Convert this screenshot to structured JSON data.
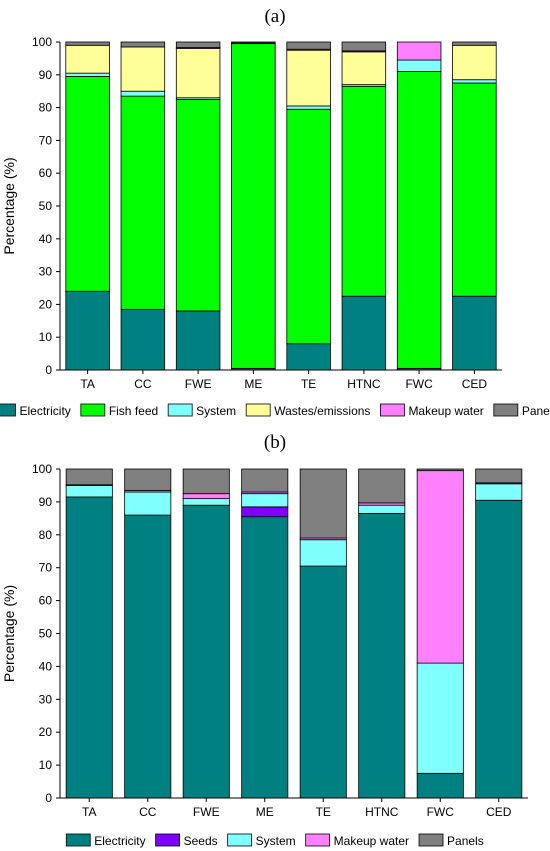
{
  "chart_data": [
    {
      "panel": "(a)",
      "type": "bar",
      "stacked": true,
      "categories": [
        "TA",
        "CC",
        "FWE",
        "ME",
        "TE",
        "HTNC",
        "FWC",
        "CED"
      ],
      "ylabel": "Percentage (%)",
      "ylim": [
        0,
        100
      ],
      "yticks": [
        0,
        10,
        20,
        30,
        40,
        50,
        60,
        70,
        80,
        90,
        100
      ],
      "series": [
        {
          "name": "Electricity",
          "color": "#008080",
          "values": [
            24,
            18.5,
            18,
            0.5,
            8,
            22.5,
            0.5,
            22.5
          ]
        },
        {
          "name": "Fish feed",
          "color": "#00ff00",
          "values": [
            65.5,
            65,
            64.5,
            99,
            71.5,
            64,
            90.5,
            65
          ]
        },
        {
          "name": "System",
          "color": "#80ffff",
          "values": [
            1,
            1.5,
            0.5,
            0,
            1,
            0.5,
            3.5,
            1
          ]
        },
        {
          "name": "Wastes/emissions",
          "color": "#ffff99",
          "values": [
            8.5,
            13.5,
            15,
            0.2,
            17,
            10,
            0,
            10.5
          ]
        },
        {
          "name": "Makeup water",
          "color": "#ff80ff",
          "values": [
            0,
            0,
            0.3,
            0,
            0.3,
            0.3,
            5.5,
            0
          ]
        },
        {
          "name": "Panels",
          "color": "#808080",
          "values": [
            1,
            1.5,
            1.7,
            0.3,
            2.2,
            2.7,
            0,
            1
          ]
        }
      ],
      "legend": "bottom"
    },
    {
      "panel": "(b)",
      "type": "bar",
      "stacked": true,
      "categories": [
        "TA",
        "CC",
        "FWE",
        "ME",
        "TE",
        "HTNC",
        "FWC",
        "CED"
      ],
      "ylabel": "Percentage (%)",
      "ylim": [
        0,
        100
      ],
      "yticks": [
        0,
        10,
        20,
        30,
        40,
        50,
        60,
        70,
        80,
        90,
        100
      ],
      "series": [
        {
          "name": "Electricity",
          "color": "#008080",
          "values": [
            91.5,
            86,
            89,
            85.5,
            70.5,
            86.5,
            7.5,
            90.5
          ]
        },
        {
          "name": "Seeds",
          "color": "#8000ff",
          "values": [
            0,
            0,
            0,
            3,
            0,
            0,
            0,
            0
          ]
        },
        {
          "name": "System",
          "color": "#80ffff",
          "values": [
            3.5,
            7,
            2,
            4,
            8,
            2.5,
            33.5,
            5
          ]
        },
        {
          "name": "Makeup water",
          "color": "#ff80ff",
          "values": [
            0.2,
            0.5,
            1.5,
            0.5,
            0.5,
            0.7,
            58.5,
            0.3
          ]
        },
        {
          "name": "Panels",
          "color": "#808080",
          "values": [
            4.8,
            6.5,
            7.5,
            7,
            21,
            10.3,
            0.5,
            4.2
          ]
        }
      ],
      "legend": "bottom"
    }
  ]
}
